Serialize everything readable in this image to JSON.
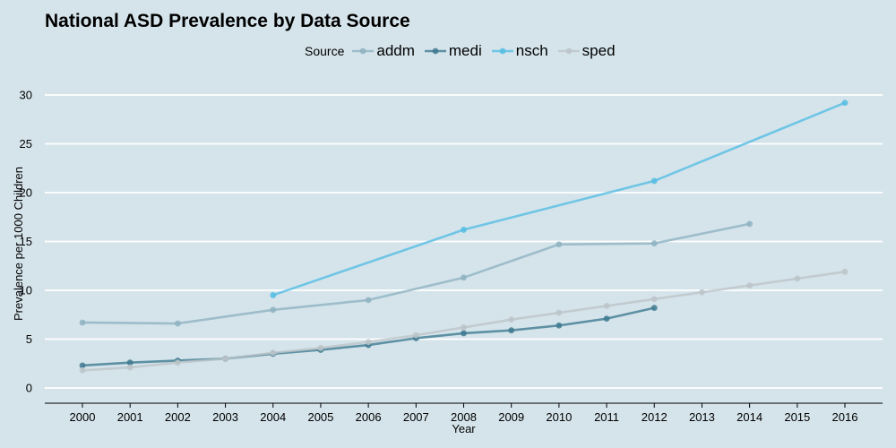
{
  "chart_data": {
    "type": "line",
    "title": "National ASD Prevalence by Data Source",
    "xlabel": "Year",
    "ylabel": "Prevalence per 1000 Children",
    "legend_title": "Source",
    "legend_position": "top",
    "grid": "horizontal",
    "xlim": [
      2000,
      2016
    ],
    "ylim": [
      0,
      30
    ],
    "x_ticks": [
      2000,
      2001,
      2002,
      2003,
      2004,
      2005,
      2006,
      2007,
      2008,
      2009,
      2010,
      2011,
      2012,
      2013,
      2014,
      2015,
      2016
    ],
    "y_ticks": [
      0,
      5,
      10,
      15,
      20,
      25,
      30
    ],
    "series": [
      {
        "name": "addm",
        "color": "#8fb3c2",
        "points": [
          [
            2000,
            6.7
          ],
          [
            2002,
            6.6
          ],
          [
            2004,
            8.0
          ],
          [
            2006,
            9.0
          ],
          [
            2008,
            11.3
          ],
          [
            2010,
            14.7
          ],
          [
            2012,
            14.8
          ],
          [
            2014,
            16.8
          ]
        ]
      },
      {
        "name": "medi",
        "color": "#3f7a91",
        "points": [
          [
            2000,
            2.3
          ],
          [
            2001,
            2.6
          ],
          [
            2002,
            2.8
          ],
          [
            2003,
            3.0
          ],
          [
            2004,
            3.5
          ],
          [
            2005,
            3.9
          ],
          [
            2006,
            4.4
          ],
          [
            2007,
            5.1
          ],
          [
            2008,
            5.6
          ],
          [
            2009,
            5.9
          ],
          [
            2010,
            6.4
          ],
          [
            2011,
            7.1
          ],
          [
            2012,
            8.2
          ]
        ]
      },
      {
        "name": "nsch",
        "color": "#55bde3",
        "points": [
          [
            2004,
            9.5
          ],
          [
            2008,
            16.2
          ],
          [
            2012,
            21.2
          ],
          [
            2016,
            29.2
          ]
        ]
      },
      {
        "name": "sped",
        "color": "#bcc4c9",
        "points": [
          [
            2000,
            1.8
          ],
          [
            2001,
            2.1
          ],
          [
            2002,
            2.6
          ],
          [
            2003,
            3.0
          ],
          [
            2004,
            3.6
          ],
          [
            2005,
            4.1
          ],
          [
            2006,
            4.7
          ],
          [
            2007,
            5.4
          ],
          [
            2008,
            6.2
          ],
          [
            2009,
            7.0
          ],
          [
            2010,
            7.7
          ],
          [
            2011,
            8.4
          ],
          [
            2012,
            9.1
          ],
          [
            2013,
            9.8
          ],
          [
            2014,
            10.5
          ],
          [
            2015,
            11.2
          ],
          [
            2016,
            11.9
          ]
        ]
      }
    ]
  }
}
